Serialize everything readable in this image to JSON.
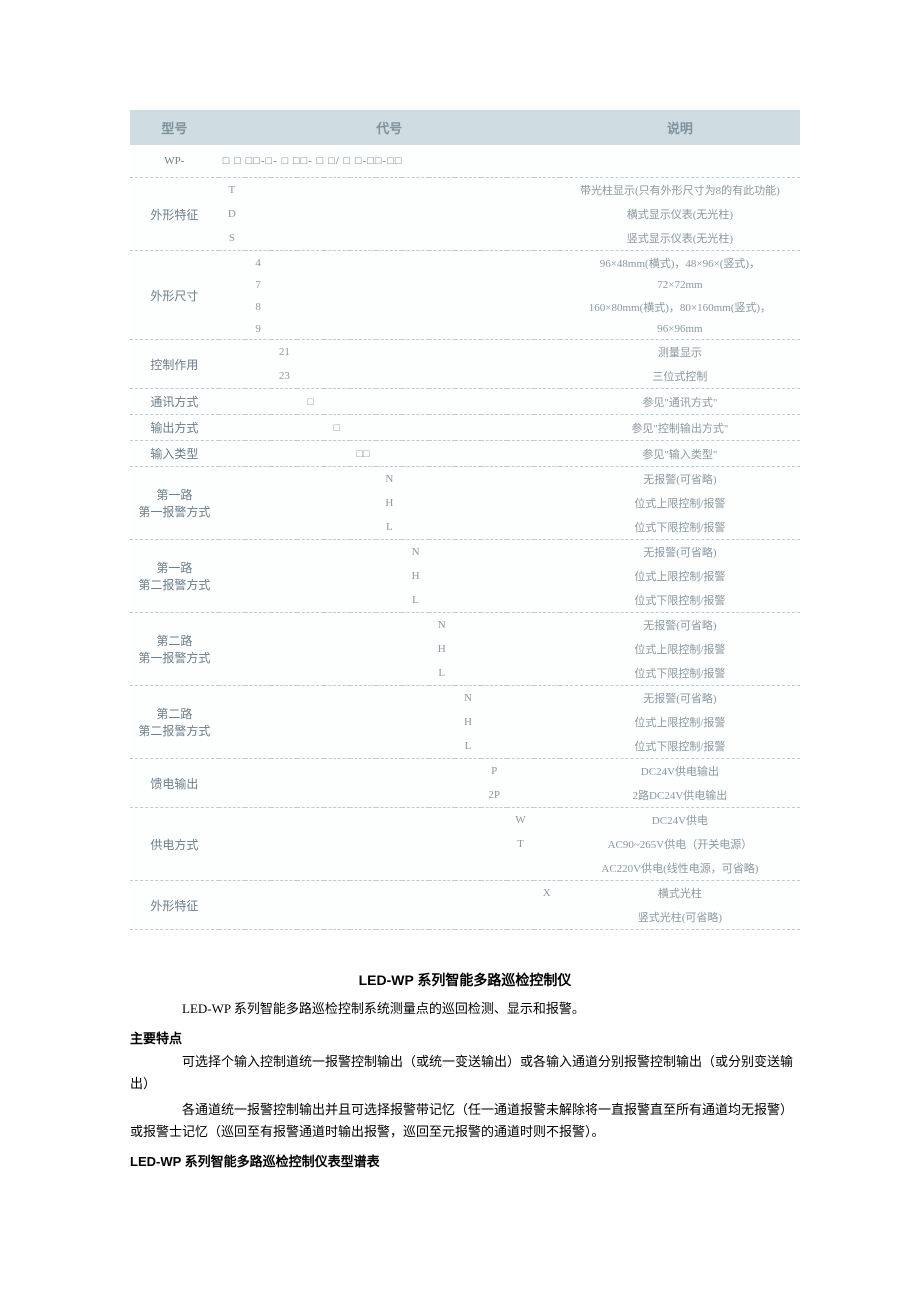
{
  "headers": {
    "model": "型号",
    "code": "代号",
    "desc": "说明"
  },
  "model_prefix": "WP-",
  "model_pattern": "□  □ □□-□- □ □□- □ □/ □  □-□□-□□",
  "rows": [
    {
      "label": "外形特征",
      "codes": [
        "T",
        "D",
        "S"
      ],
      "col": 0,
      "descs": [
        "带光柱显示(只有外形尺寸为8的有此功能)",
        "横式显示仪表(无光柱)",
        "竖式显示仪表(无光柱)"
      ]
    },
    {
      "label": "外形尺寸",
      "codes": [
        "4",
        "7",
        "8",
        "9"
      ],
      "col": 1,
      "descs": [
        "96×48mm(横式)，48×96×(竖式)，",
        "72×72mm",
        "160×80mm(横式)，80×160mm(竖式)，",
        "96×96mm"
      ]
    },
    {
      "label": "控制作用",
      "codes": [
        "21",
        "23"
      ],
      "col": 2,
      "descs": [
        "测量显示",
        "三位式控制"
      ]
    },
    {
      "label": "通讯方式",
      "codes": [
        "□"
      ],
      "col": 3,
      "descs": [
        "参见\"通讯方式\""
      ]
    },
    {
      "label": "输出方式",
      "codes": [
        "□"
      ],
      "col": 4,
      "descs": [
        "参见\"控制输出方式\""
      ]
    },
    {
      "label": "输入类型",
      "codes": [
        "□□"
      ],
      "col": 5,
      "descs": [
        "参见\"输入类型\""
      ]
    },
    {
      "label": "第一路\n第一报警方式",
      "codes": [
        "N",
        "H",
        "L"
      ],
      "col": 6,
      "descs": [
        "无报警(可省略)",
        "位式上限控制/报警",
        "位式下限控制/报警"
      ]
    },
    {
      "label": "第一路\n第二报警方式",
      "codes": [
        "N",
        "H",
        "L"
      ],
      "col": 7,
      "descs": [
        "无报警(可省略)",
        "位式上限控制/报警",
        "位式下限控制/报警"
      ]
    },
    {
      "label": "第二路\n第一报警方式",
      "codes": [
        "N",
        "H",
        "L"
      ],
      "col": 8,
      "descs": [
        "无报警(可省略)",
        "位式上限控制/报警",
        "位式下限控制/报警"
      ]
    },
    {
      "label": "第二路\n第二报警方式",
      "codes": [
        "N",
        "H",
        "L"
      ],
      "col": 9,
      "descs": [
        "无报警(可省略)",
        "位式上限控制/报警",
        "位式下限控制/报警"
      ]
    },
    {
      "label": "馈电输出",
      "codes": [
        "P",
        "2P"
      ],
      "col": 10,
      "descs": [
        "DC24V供电输出",
        "2路DC24V供电输出"
      ]
    },
    {
      "label": "供电方式",
      "codes": [
        "W",
        "T",
        ""
      ],
      "col": 11,
      "descs": [
        "DC24V供电",
        "AC90~265V供电（开关电源）",
        "AC220V供电(线性电源，可省略)"
      ]
    },
    {
      "label": "外形特征",
      "codes": [
        "X",
        ""
      ],
      "col": 12,
      "descs": [
        "横式光柱",
        "竖式光柱(可省略)"
      ]
    }
  ],
  "doc": {
    "title": "LED-WP 系列智能多路巡检控制仪",
    "intro": "LED-WP 系列智能多路巡检控制系统测量点的巡回检测、显示和报警。",
    "features_head": "主要特点",
    "feature1": "可选择个输入控制道统一报警控制输出（或统一变送输出）或各输入通道分别报警控制输出（或分别变送输出）",
    "feature2": "各通道统一报警控制输出并且可选择报警带记忆（任一通道报警未解除将一直报警直至所有通道均无报警）或报警士记忆（巡回至有报警通道时输出报警，巡回至元报警的通道时则不报警）。",
    "spectrum_head": "LED-WP 系列智能多路巡检控制仪表型谱表"
  }
}
